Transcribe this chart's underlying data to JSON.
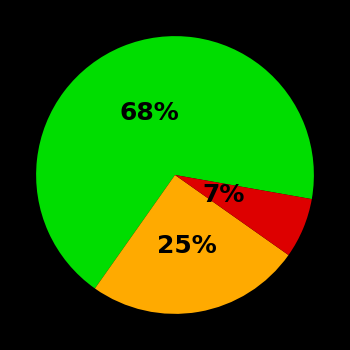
{
  "slices": [
    68,
    25,
    7
  ],
  "colors": [
    "#00dd00",
    "#ffaa00",
    "#dd0000"
  ],
  "labels": [
    "68%",
    "25%",
    "7%"
  ],
  "background_color": "#000000",
  "text_color": "#000000",
  "font_size": 18,
  "font_weight": "bold",
  "startangle": -10,
  "counterclock": true,
  "label_radii": [
    0.48,
    0.52,
    0.38
  ]
}
